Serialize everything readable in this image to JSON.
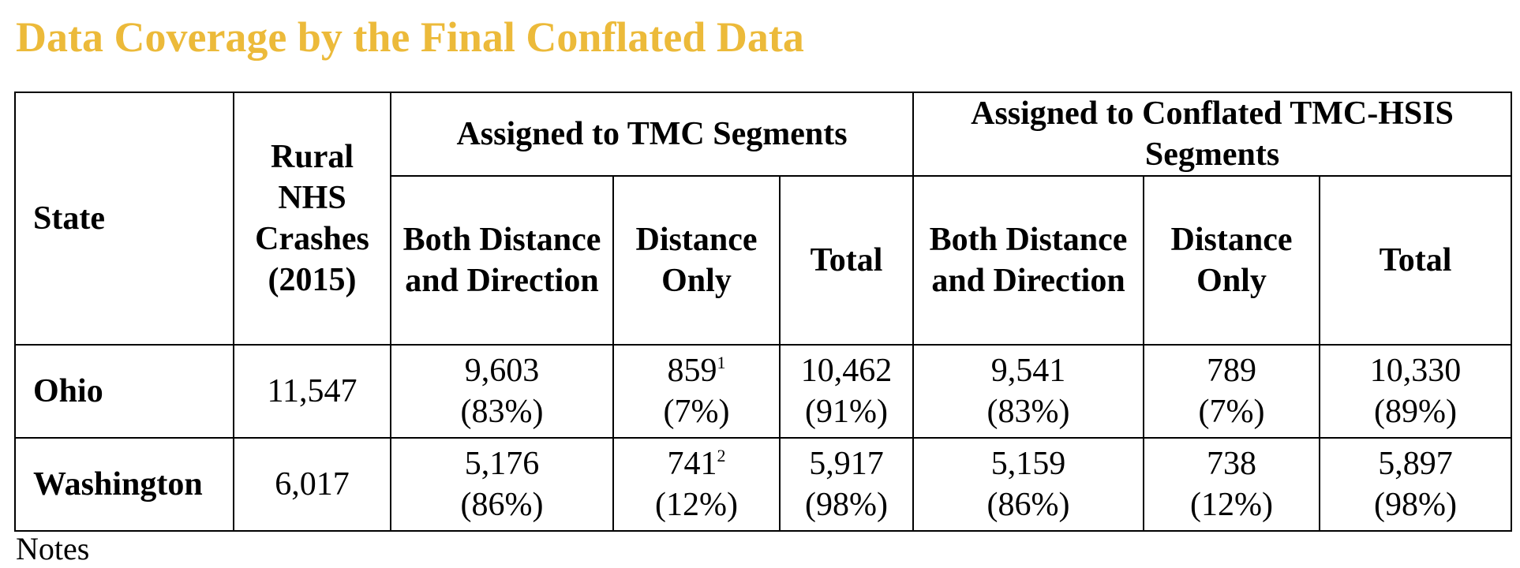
{
  "title": "Data Coverage by the Final Conflated Data",
  "colors": {
    "title": "#ECBA3A",
    "text": "#000000",
    "border": "#000000",
    "background": "#FFFFFF"
  },
  "table": {
    "headers": {
      "state": "State",
      "crashes": "Rural NHS Crashes (2015)",
      "group_tmc": "Assigned to TMC Segments",
      "group_conflated": "Assigned to Conflated TMC-HSIS Segments",
      "tmc": {
        "both": "Both Distance and Direction",
        "distance_only": "Distance Only",
        "total": "Total"
      },
      "conflated": {
        "both": "Both Distance and Direction",
        "distance_only": "Distance Only",
        "total": "Total"
      }
    },
    "rows": [
      {
        "state": "Ohio",
        "crashes": "11,547",
        "tmc_both": "9,603",
        "tmc_both_pct": "(83%)",
        "tmc_dist": "859",
        "tmc_dist_footnote": "1",
        "tmc_dist_pct": "(7%)",
        "tmc_total": "10,462",
        "tmc_total_pct": "(91%)",
        "conf_both": "9,541",
        "conf_both_pct": "(83%)",
        "conf_dist": "789",
        "conf_dist_pct": "(7%)",
        "conf_total": "10,330",
        "conf_total_pct": "(89%)"
      },
      {
        "state": "Washington",
        "crashes": "6,017",
        "tmc_both": "5,176",
        "tmc_both_pct": "(86%)",
        "tmc_dist": "741",
        "tmc_dist_footnote": "2",
        "tmc_dist_pct": "(12%)",
        "tmc_total": "5,917",
        "tmc_total_pct": "(98%)",
        "conf_both": "5,159",
        "conf_both_pct": "(86%)",
        "conf_dist": "738",
        "conf_dist_pct": "(12%)",
        "conf_total": "5,897",
        "conf_total_pct": "(98%)"
      }
    ]
  },
  "notes_label": "Notes"
}
